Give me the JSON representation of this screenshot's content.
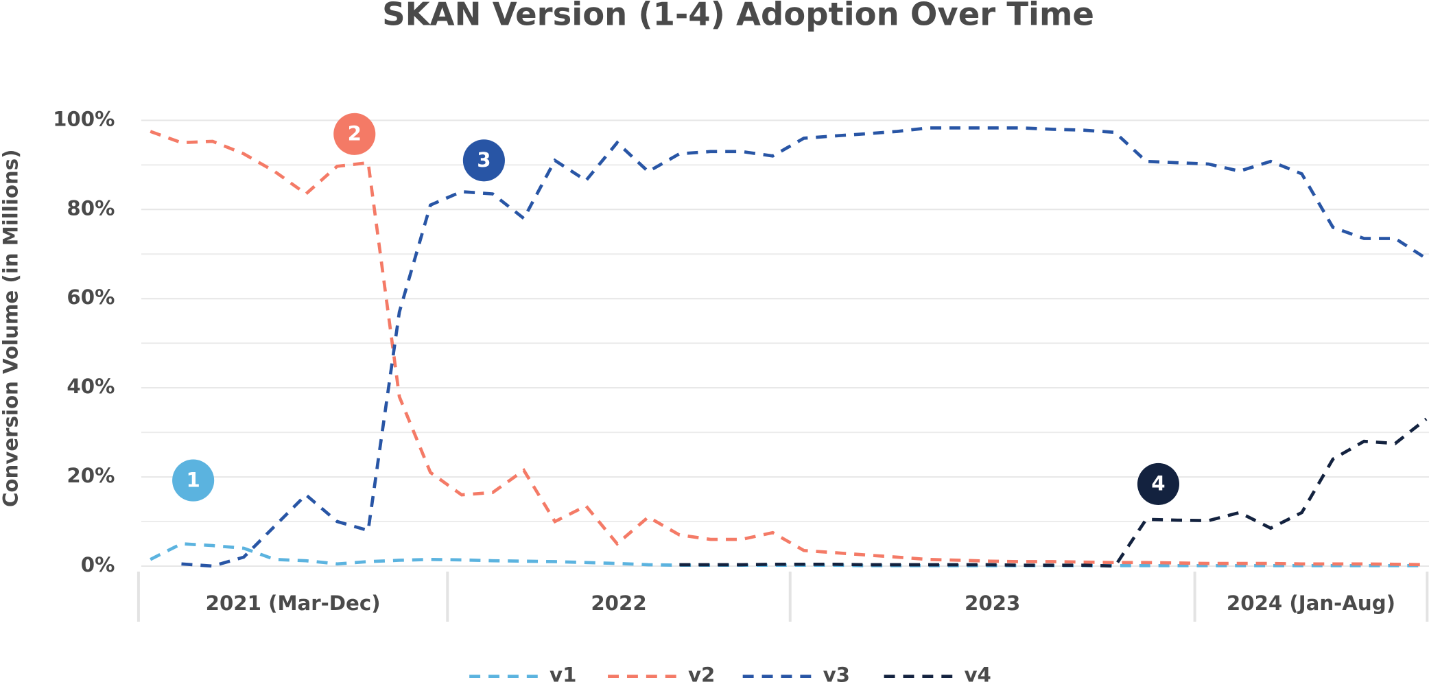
{
  "chart_data": {
    "type": "line",
    "title": "SKAN Version (1-4) Adoption Over Time",
    "y_label": "Conversion Volume (in Millions)",
    "categories": [
      null,
      null,
      null,
      null,
      null,
      null,
      null,
      null,
      null,
      null,
      null,
      null,
      null,
      null,
      null,
      null,
      null,
      null,
      null,
      null,
      null,
      null,
      null,
      null,
      null,
      null,
      null,
      null,
      null,
      null,
      null,
      null,
      null,
      null,
      null,
      null,
      null,
      null,
      null,
      null,
      null,
      null
    ],
    "x_groups": [
      "2021 (Mar-Dec)",
      "2022",
      "2023",
      "2024 (Jan-Aug)"
    ],
    "ylim": [
      0,
      100
    ],
    "yticks": [
      {
        "value": 0,
        "label": "0%"
      },
      {
        "value": 20,
        "label": "20%"
      },
      {
        "value": 40,
        "label": "40%"
      },
      {
        "value": 60,
        "label": "60%"
      },
      {
        "value": 80,
        "label": "80%"
      },
      {
        "value": 100,
        "label": "100%"
      }
    ],
    "minor_yticks": [
      10,
      30,
      50,
      70,
      90
    ],
    "grid": true,
    "legend": "bottom",
    "series": [
      {
        "name": "v1",
        "color": "#5bb3df",
        "values": [
          1.5,
          5,
          4.6,
          4,
          1.5,
          1.2,
          0.5,
          1,
          1.3,
          1.5,
          1.4,
          1.2,
          1.1,
          1,
          0.8,
          0.6,
          0.3,
          0.2,
          0.2,
          0.2,
          0.2,
          0.2,
          0.2,
          0.1,
          0.1,
          0.1,
          0.1,
          0.1,
          0.1,
          0.1,
          0.1,
          0.1,
          0.1,
          0.1,
          0.1,
          0.1,
          0.1,
          0.1,
          0.1,
          0.1,
          0.1,
          0.1
        ]
      },
      {
        "name": "v2",
        "color": "#f47a66",
        "values": [
          97.5,
          95,
          95.3,
          92.5,
          88.5,
          83.5,
          89.7,
          90.5,
          38,
          21,
          16,
          16.5,
          21.5,
          10,
          13.5,
          5,
          11,
          7,
          6,
          6,
          7.5,
          3.5,
          3,
          2.5,
          2,
          1.5,
          1.3,
          1.1,
          1,
          1,
          0.9,
          0.8,
          0.8,
          0.7,
          0.6,
          0.6,
          0.6,
          0.5,
          0.5,
          0.5,
          0.4,
          0.3
        ]
      },
      {
        "name": "v3",
        "color": "#2855a5",
        "values": [
          null,
          0.5,
          0,
          2,
          9,
          16,
          10,
          8,
          57,
          81,
          84,
          83.5,
          78,
          91,
          86.5,
          95,
          88.5,
          92.5,
          93,
          93,
          92,
          96,
          96.5,
          97,
          97.5,
          98.3,
          98.3,
          98.3,
          98.3,
          98,
          97.8,
          97.3,
          90.8,
          90.5,
          90.2,
          88.6,
          90.8,
          88,
          76,
          73.5,
          73.5,
          69
        ]
      },
      {
        "name": "v4",
        "color": "#13223f",
        "values": [
          null,
          null,
          null,
          null,
          null,
          null,
          null,
          null,
          null,
          null,
          null,
          null,
          null,
          null,
          null,
          null,
          null,
          0.3,
          0.3,
          0.3,
          0.4,
          0.4,
          0.4,
          0.3,
          0.3,
          0.3,
          0.3,
          0.3,
          0.2,
          0.2,
          0.2,
          0,
          10.5,
          10.3,
          10.2,
          12,
          8.5,
          12,
          24,
          28,
          27.5,
          33
        ]
      }
    ],
    "annotations": [
      {
        "text": "1",
        "color": "#5bb3df"
      },
      {
        "text": "2",
        "color": "#f47a66"
      },
      {
        "text": "3",
        "color": "#2855a5"
      },
      {
        "text": "4",
        "color": "#13223f"
      }
    ]
  }
}
